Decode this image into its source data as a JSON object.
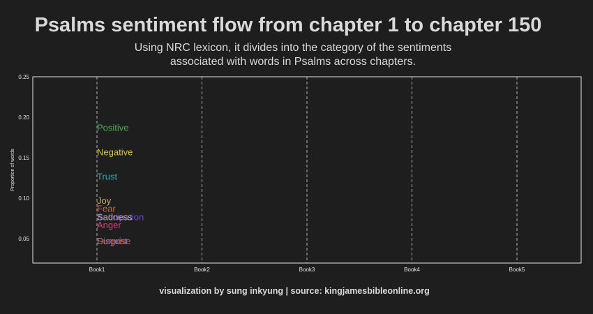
{
  "chart_data": {
    "type": "line",
    "title": "Psalms sentiment flow from chapter 1 to chapter 150",
    "subtitle_lines": [
      "Using NRC lexicon, it divides into the category of the sentiments",
      "associated with words in Psalms across chapters."
    ],
    "caption": "visualization by sung inkyung | source: kingjamesbibleonline.org",
    "ylabel": "Proportion of words",
    "categories": [
      "Book1",
      "Book2",
      "Book3",
      "Book4",
      "Book5"
    ],
    "ylim": [
      0.02,
      0.25
    ],
    "yticks": [
      "0.05",
      "0.10",
      "0.15",
      "0.20",
      "0.25"
    ],
    "grid": "vertical dashed at each book",
    "label_position": "Book1",
    "series": [
      {
        "name": "Positive",
        "value": 0.187,
        "color": "#4daf4a"
      },
      {
        "name": "Negative",
        "value": 0.157,
        "color": "#d5c634"
      },
      {
        "name": "Trust",
        "value": 0.127,
        "color": "#3aa7a7"
      },
      {
        "name": "Joy",
        "value": 0.097,
        "color": "#c9a96b"
      },
      {
        "name": "Fear",
        "value": 0.087,
        "color": "#d35f4a"
      },
      {
        "name": "Anticipation",
        "value": 0.077,
        "color": "#6a4fc2"
      },
      {
        "name": "Sadness",
        "value": 0.077,
        "color": "#b5a99c"
      },
      {
        "name": "Anger",
        "value": 0.067,
        "color": "#c4467a"
      },
      {
        "name": "Disgust",
        "value": 0.047,
        "color": "#8e73c9"
      },
      {
        "name": "Surprise",
        "value": 0.047,
        "color": "#c0604a"
      }
    ]
  }
}
